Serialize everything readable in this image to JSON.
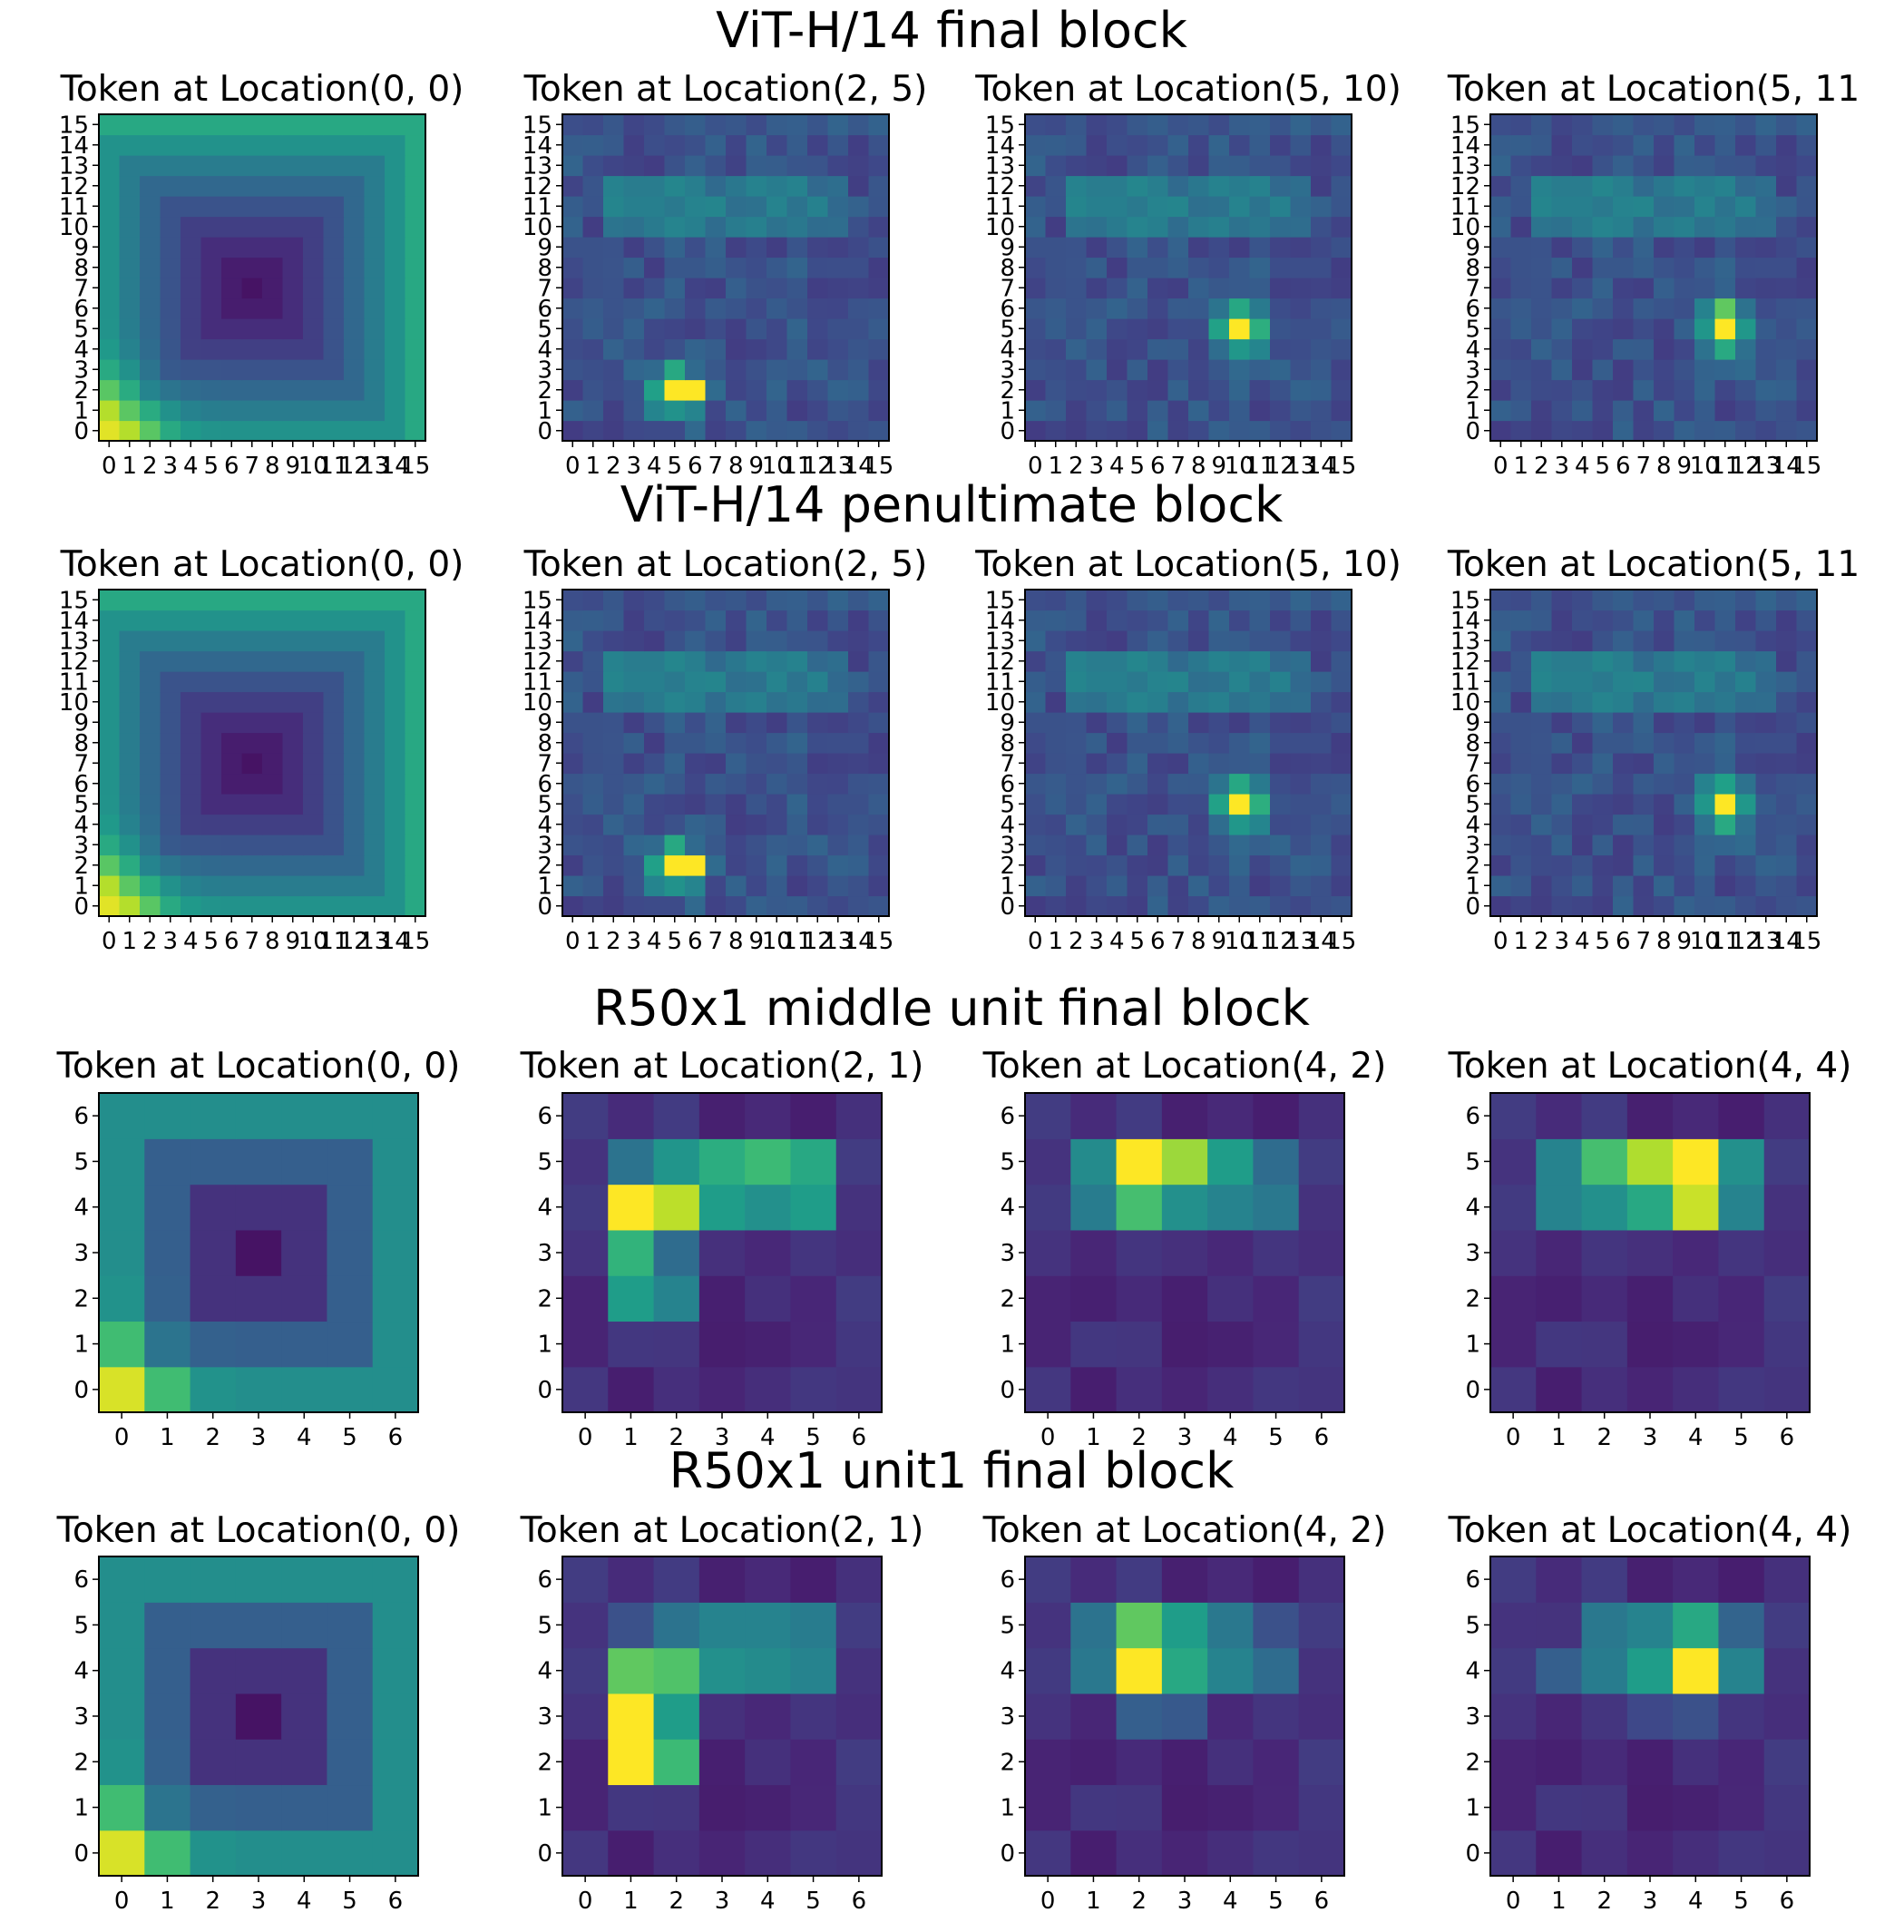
{
  "colormap": [
    "#440154",
    "#482878",
    "#3e4989",
    "#31688e",
    "#26828e",
    "#1f9e89",
    "#35b779",
    "#6ece58",
    "#b5de2b",
    "#fde725"
  ],
  "chart_data": [
    {
      "title": "ViT-H/14 final block",
      "type": "heatmap",
      "grid_size": 16,
      "x_ticks": [
        "0",
        "1",
        "2",
        "3",
        "4",
        "5",
        "6",
        "7",
        "8",
        "9",
        "10",
        "11",
        "12",
        "13",
        "14",
        "15"
      ],
      "y_ticks": [
        "0",
        "1",
        "2",
        "3",
        "4",
        "5",
        "6",
        "7",
        "8",
        "9",
        "10",
        "11",
        "12",
        "13",
        "14",
        "15"
      ],
      "panels": [
        {
          "title": "Token at Location(0, 0)",
          "pattern": "corner",
          "peak": [
            0,
            0
          ],
          "center": [
            7,
            7
          ]
        },
        {
          "title": "Token at Location(2, 5)",
          "pattern": "local",
          "peak": [
            2,
            5
          ],
          "peak_height": 1
        },
        {
          "title": "Token at Location(5, 10)",
          "pattern": "local",
          "peak": [
            5,
            10
          ],
          "peak_height": 1
        },
        {
          "title": "Token at Location(5, 11",
          "pattern": "local",
          "peak": [
            5,
            11
          ],
          "peak_height": 2
        }
      ]
    },
    {
      "title": "ViT-H/14 penultimate block",
      "type": "heatmap",
      "grid_size": 16,
      "x_ticks": [
        "0",
        "1",
        "2",
        "3",
        "4",
        "5",
        "6",
        "7",
        "8",
        "9",
        "10",
        "11",
        "12",
        "13",
        "14",
        "15"
      ],
      "y_ticks": [
        "0",
        "1",
        "2",
        "3",
        "4",
        "5",
        "6",
        "7",
        "8",
        "9",
        "10",
        "11",
        "12",
        "13",
        "14",
        "15"
      ],
      "panels": [
        {
          "title": "Token at Location(0, 0)",
          "pattern": "corner",
          "peak": [
            0,
            0
          ],
          "center": [
            7,
            7
          ]
        },
        {
          "title": "Token at Location(2, 5)",
          "pattern": "local",
          "peak": [
            2,
            5
          ],
          "peak_height": 1
        },
        {
          "title": "Token at Location(5, 10)",
          "pattern": "local",
          "peak": [
            5,
            10
          ],
          "peak_height": 1
        },
        {
          "title": "Token at Location(5, 11",
          "pattern": "local",
          "peak": [
            5,
            11
          ],
          "peak_height": 1
        }
      ]
    },
    {
      "title": "R50x1 middle unit final block",
      "type": "heatmap",
      "grid_size": 7,
      "x_ticks": [
        "0",
        "1",
        "2",
        "3",
        "4",
        "5",
        "6"
      ],
      "y_ticks": [
        "0",
        "1",
        "2",
        "3",
        "4",
        "5",
        "6"
      ],
      "panels": [
        {
          "title": "Token at Location(0, 0)",
          "pattern": "corner",
          "peak": [
            0,
            0
          ],
          "center": [
            3,
            3
          ]
        },
        {
          "title": "Token at Location(2, 1)",
          "pattern": "region",
          "cells": [
            [
              4,
              1,
              1.0
            ],
            [
              4,
              2,
              0.9
            ],
            [
              3,
              1,
              0.65
            ],
            [
              2,
              1,
              0.55
            ],
            [
              2,
              2,
              0.45
            ],
            [
              3,
              2,
              0.35
            ],
            [
              4,
              3,
              0.55
            ],
            [
              4,
              4,
              0.5
            ],
            [
              4,
              5,
              0.55
            ],
            [
              5,
              3,
              0.62
            ],
            [
              5,
              4,
              0.68
            ],
            [
              5,
              5,
              0.6
            ],
            [
              5,
              2,
              0.52
            ],
            [
              5,
              1,
              0.38
            ]
          ]
        },
        {
          "title": "Token at Location(4, 2)",
          "pattern": "region",
          "cells": [
            [
              5,
              2,
              1.0
            ],
            [
              5,
              3,
              0.85
            ],
            [
              5,
              4,
              0.55
            ],
            [
              4,
              2,
              0.7
            ],
            [
              4,
              3,
              0.5
            ],
            [
              4,
              4,
              0.45
            ],
            [
              5,
              1,
              0.48
            ],
            [
              4,
              1,
              0.42
            ],
            [
              5,
              5,
              0.35
            ],
            [
              4,
              5,
              0.4
            ]
          ]
        },
        {
          "title": "Token at Location(4, 4)",
          "pattern": "region",
          "cells": [
            [
              5,
              4,
              1.0
            ],
            [
              4,
              4,
              0.92
            ],
            [
              5,
              3,
              0.88
            ],
            [
              5,
              2,
              0.7
            ],
            [
              4,
              3,
              0.6
            ],
            [
              4,
              2,
              0.5
            ],
            [
              4,
              1,
              0.45
            ],
            [
              5,
              1,
              0.45
            ],
            [
              5,
              5,
              0.5
            ],
            [
              4,
              5,
              0.45
            ]
          ]
        }
      ]
    },
    {
      "title": "R50x1 unit1 final block",
      "type": "heatmap",
      "grid_size": 7,
      "x_ticks": [
        "0",
        "1",
        "2",
        "3",
        "4",
        "5",
        "6"
      ],
      "y_ticks": [
        "0",
        "1",
        "2",
        "3",
        "4",
        "5",
        "6"
      ],
      "panels": [
        {
          "title": "Token at Location(0, 0)",
          "pattern": "corner",
          "peak": [
            0,
            0
          ],
          "center": [
            3,
            3
          ]
        },
        {
          "title": "Token at Location(2, 1)",
          "pattern": "region",
          "cells": [
            [
              2,
              1,
              1.0
            ],
            [
              3,
              1,
              1.0
            ],
            [
              4,
              1,
              0.75
            ],
            [
              4,
              2,
              0.72
            ],
            [
              2,
              2,
              0.68
            ],
            [
              3,
              2,
              0.55
            ],
            [
              4,
              3,
              0.5
            ],
            [
              4,
              4,
              0.48
            ],
            [
              4,
              5,
              0.45
            ],
            [
              5,
              3,
              0.45
            ],
            [
              5,
              4,
              0.45
            ],
            [
              5,
              5,
              0.42
            ],
            [
              5,
              2,
              0.38
            ],
            [
              5,
              1,
              0.25
            ]
          ]
        },
        {
          "title": "Token at Location(4, 2)",
          "pattern": "region",
          "cells": [
            [
              4,
              2,
              1.0
            ],
            [
              5,
              2,
              0.75
            ],
            [
              5,
              3,
              0.55
            ],
            [
              4,
              3,
              0.6
            ],
            [
              4,
              4,
              0.45
            ],
            [
              5,
              4,
              0.4
            ],
            [
              4,
              1,
              0.4
            ],
            [
              5,
              1,
              0.38
            ],
            [
              3,
              2,
              0.3
            ],
            [
              4,
              5,
              0.35
            ],
            [
              3,
              3,
              0.28
            ],
            [
              5,
              5,
              0.25
            ]
          ]
        },
        {
          "title": "Token at Location(4, 4)",
          "pattern": "region",
          "cells": [
            [
              4,
              4,
              1.0
            ],
            [
              5,
              4,
              0.6
            ],
            [
              4,
              3,
              0.55
            ],
            [
              4,
              5,
              0.45
            ],
            [
              5,
              3,
              0.45
            ],
            [
              4,
              2,
              0.42
            ],
            [
              5,
              2,
              0.4
            ],
            [
              4,
              1,
              0.3
            ],
            [
              5,
              5,
              0.32
            ],
            [
              3,
              4,
              0.25
            ],
            [
              3,
              3,
              0.22
            ]
          ]
        }
      ]
    }
  ]
}
